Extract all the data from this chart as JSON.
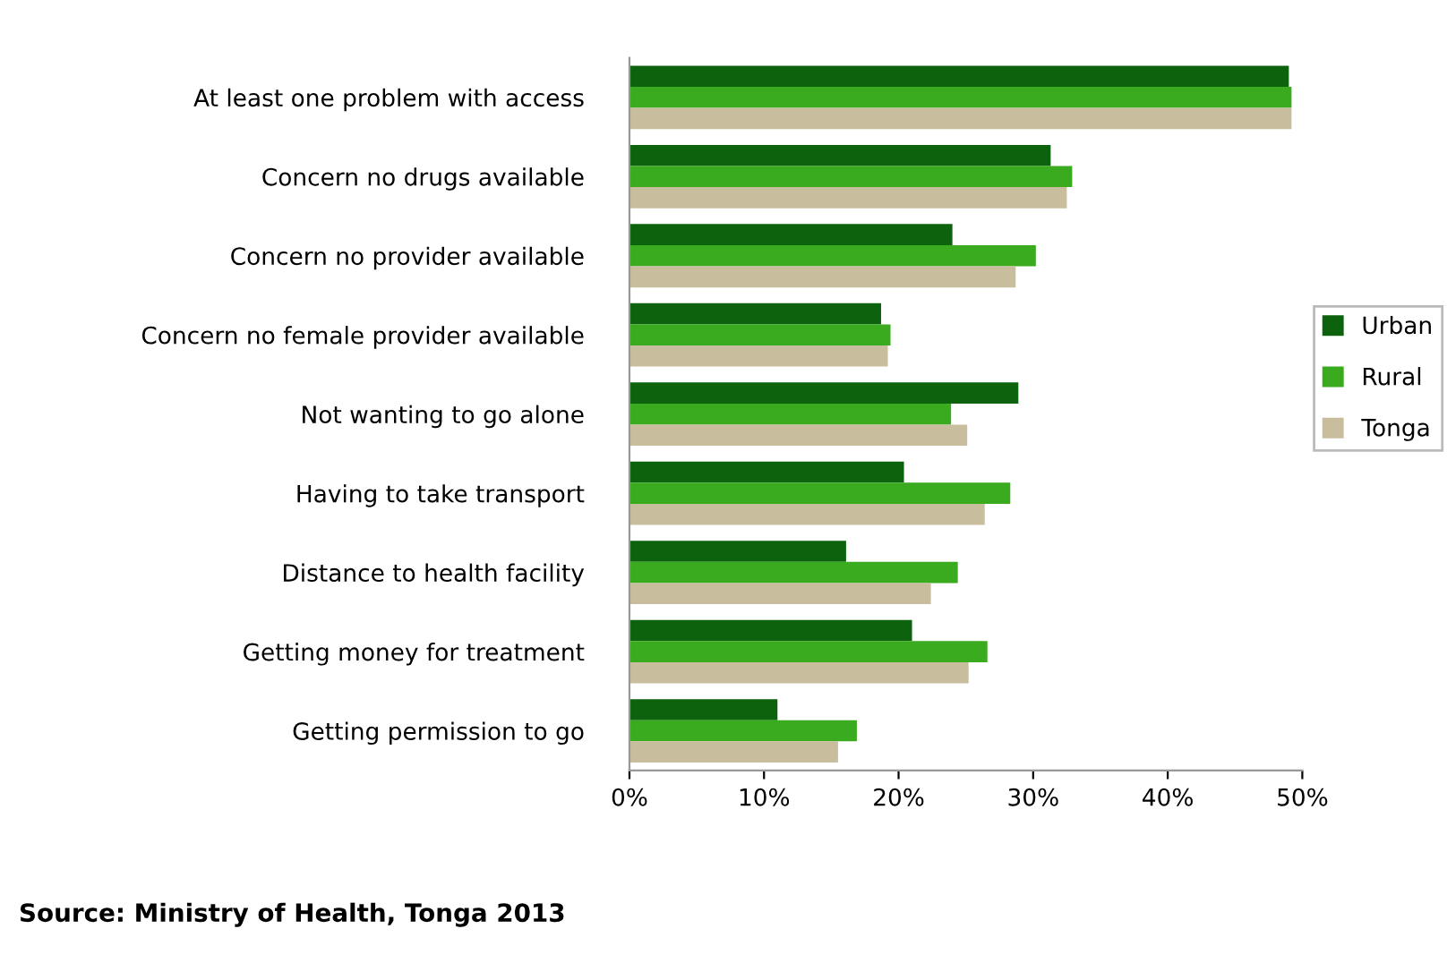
{
  "chart_data": {
    "type": "bar",
    "orientation": "horizontal",
    "categories": [
      "At least one problem with access",
      "Concern no drugs available",
      "Concern no provider available",
      "Concern no female provider available",
      "Not wanting to go alone",
      "Having to take transport",
      "Distance to health facility",
      "Getting money for treatment",
      "Getting permission to go"
    ],
    "series": [
      {
        "name": "Urban",
        "color": "#0d620d",
        "values": [
          49.0,
          31.3,
          24.0,
          18.7,
          28.9,
          20.4,
          16.1,
          21.0,
          11.0
        ]
      },
      {
        "name": "Rural",
        "color": "#3aaa1e",
        "values": [
          49.2,
          32.9,
          30.2,
          19.4,
          23.9,
          28.3,
          24.4,
          26.6,
          16.9
        ]
      },
      {
        "name": "Tonga",
        "color": "#c8bd9c",
        "values": [
          49.2,
          32.5,
          28.7,
          19.2,
          25.1,
          26.4,
          22.4,
          25.2,
          15.5
        ]
      }
    ],
    "xlim": [
      0,
      50
    ],
    "xticks": [
      {
        "value": 0,
        "label": "0%"
      },
      {
        "value": 10,
        "label": "10%"
      },
      {
        "value": 20,
        "label": "20%"
      },
      {
        "value": 30,
        "label": "30%"
      },
      {
        "value": 40,
        "label": "40%"
      },
      {
        "value": 50,
        "label": "50%"
      }
    ],
    "grid": false,
    "legend": "right",
    "annotations": [
      "Source: Ministry of Health, Tonga 2013"
    ]
  }
}
